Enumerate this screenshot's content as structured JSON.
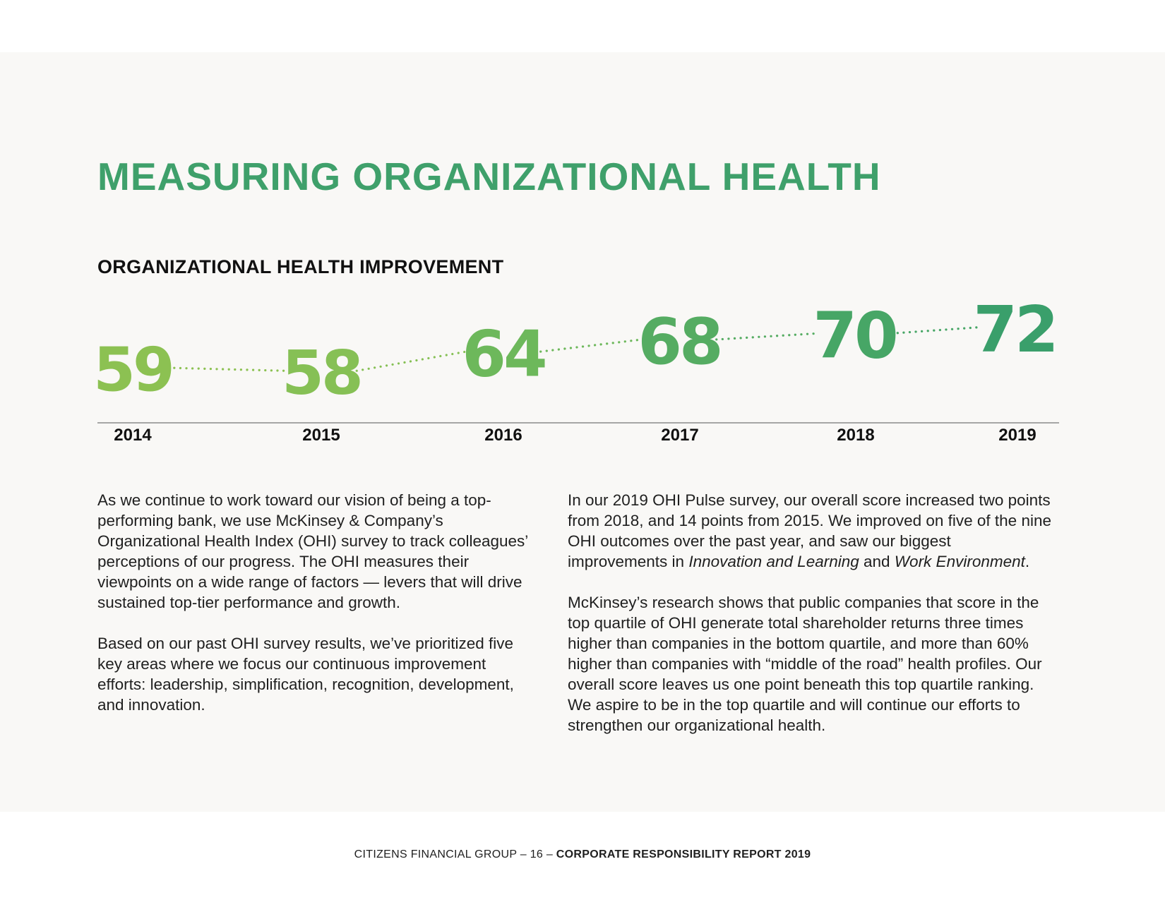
{
  "page": {
    "title": "MEASURING ORGANIZATIONAL HEALTH",
    "subtitle": "ORGANIZATIONAL HEALTH IMPROVEMENT"
  },
  "chart_data": {
    "type": "line",
    "title": "ORGANIZATIONAL HEALTH IMPROVEMENT",
    "categories": [
      "2014",
      "2015",
      "2016",
      "2017",
      "2018",
      "2019"
    ],
    "values": [
      59,
      58,
      64,
      68,
      70,
      72
    ],
    "data_labels": [
      "59",
      "58",
      "64",
      "68",
      "70",
      "72"
    ],
    "line_style": "dotted",
    "xlabel": "",
    "ylabel": "",
    "ylim": [
      58,
      72
    ],
    "grid": false,
    "colors": [
      "#8cc152",
      "#86c055",
      "#6db85b",
      "#55ac62",
      "#47a666",
      "#3a9f6b"
    ]
  },
  "body": {
    "left": {
      "p1": "As we continue to work toward our vision of being a top-performing bank, we use McKinsey & Company’s Organizational Health Index (OHI) survey to track colleagues’ perceptions of our progress. The OHI measures their viewpoints on a wide range of factors — levers that will drive sustained top-tier performance and growth.",
      "p2": "Based on our past OHI survey results, we’ve prioritized five key areas where we focus our continuous improvement efforts: leadership, simplification, recognition, development, and innovation."
    },
    "right": {
      "p1_a": "In our 2019 OHI Pulse survey, our overall score increased two points from 2018, and 14 points from 2015. We improved on five of the nine OHI outcomes over the past year, and saw our biggest improvements in ",
      "p1_em1": "Innovation and Learning",
      "p1_b": " and ",
      "p1_em2": "Work Environment",
      "p1_c": ".",
      "p2": "McKinsey’s research shows that public companies that score in the top quartile of OHI generate total shareholder returns three times higher than companies in the bottom quartile, and more than 60% higher than companies with “middle of the road” health profiles. Our overall score leaves us one point beneath this top quartile ranking. We aspire to be in the top quartile and will continue our efforts to strengthen our organizational health."
    }
  },
  "footer": {
    "left": "CITIZENS FINANCIAL GROUP – 16 – ",
    "right": "CORPORATE RESPONSIBILITY REPORT 2019"
  }
}
